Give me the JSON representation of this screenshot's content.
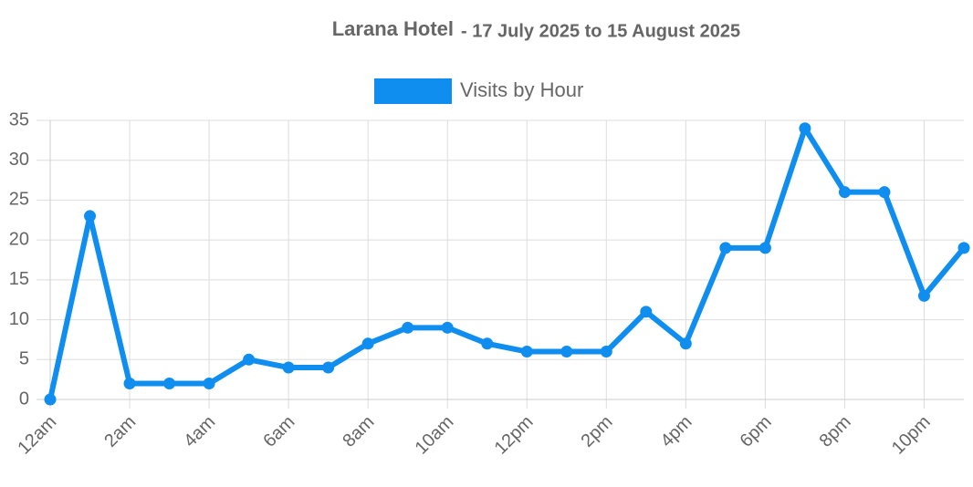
{
  "chart_data": {
    "type": "line",
    "title": "Larana Hotel",
    "subtitle": "- 17 July 2025 to 15 August 2025",
    "categories": [
      "12am",
      null,
      "2am",
      null,
      "4am",
      null,
      "6am",
      null,
      "8am",
      null,
      "10am",
      null,
      "12pm",
      null,
      "2pm",
      null,
      "4pm",
      null,
      "6pm",
      null,
      "8pm",
      null,
      "10pm",
      null
    ],
    "series": [
      {
        "name": "Visits by Hour",
        "color": "#0f8ef0",
        "values": [
          0,
          23,
          2,
          2,
          2,
          5,
          4,
          4,
          7,
          9,
          9,
          7,
          6,
          6,
          6,
          11,
          7,
          19,
          19,
          34,
          26,
          26,
          13,
          19
        ]
      }
    ],
    "ylim": [
      0,
      35
    ],
    "yticks": [
      0,
      5,
      10,
      15,
      20,
      25,
      30,
      35
    ],
    "grid": true
  }
}
